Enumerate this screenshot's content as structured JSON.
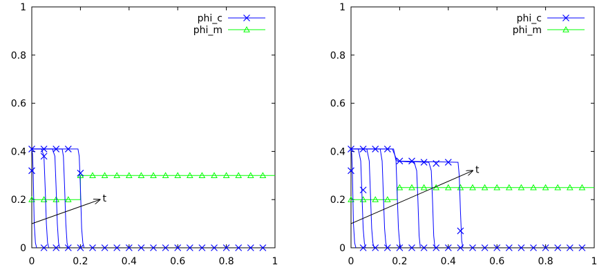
{
  "chart_data": [
    {
      "type": "line",
      "xlim": [
        0,
        1
      ],
      "ylim": [
        0,
        1
      ],
      "xticks": [
        "0",
        "0.2",
        "0.4",
        "0.6",
        "0.8",
        "1"
      ],
      "yticks": [
        "0",
        "0.2",
        "0.4",
        "0.6",
        "0.8",
        "1"
      ],
      "grid": false,
      "legend_position": "top-right",
      "legend": [
        {
          "label": "phi_c",
          "color": "#0000ff",
          "marker": "x"
        },
        {
          "label": "phi_m",
          "color": "#00ff00",
          "marker": "triangle"
        }
      ],
      "annotation": {
        "label": "t",
        "from": [
          0.0,
          0.1
        ],
        "to": [
          0.28,
          0.2
        ]
      },
      "phi_c_curves": [
        [
          [
            0,
            0.41
          ],
          [
            0.003,
            0.39
          ],
          [
            0.006,
            0.3
          ],
          [
            0.01,
            0.1
          ],
          [
            0.015,
            0.02
          ],
          [
            0.02,
            0
          ]
        ],
        [
          [
            0,
            0.41
          ],
          [
            0.04,
            0.41
          ],
          [
            0.05,
            0.38
          ],
          [
            0.055,
            0.25
          ],
          [
            0.06,
            0.1
          ],
          [
            0.065,
            0.02
          ],
          [
            0.07,
            0
          ]
        ],
        [
          [
            0,
            0.41
          ],
          [
            0.085,
            0.41
          ],
          [
            0.095,
            0.38
          ],
          [
            0.1,
            0.25
          ],
          [
            0.105,
            0.1
          ],
          [
            0.11,
            0.02
          ],
          [
            0.115,
            0
          ]
        ],
        [
          [
            0,
            0.41
          ],
          [
            0.125,
            0.41
          ],
          [
            0.13,
            0.38
          ],
          [
            0.135,
            0.25
          ],
          [
            0.14,
            0.1
          ],
          [
            0.145,
            0.02
          ],
          [
            0.15,
            0
          ]
        ],
        [
          [
            0,
            0.41
          ],
          [
            0.19,
            0.41
          ],
          [
            0.195,
            0.38
          ],
          [
            0.2,
            0.25
          ],
          [
            0.205,
            0.08
          ],
          [
            0.21,
            0.02
          ],
          [
            0.215,
            0
          ]
        ]
      ],
      "phi_c_markers": [
        [
          0,
          0.32
        ],
        [
          0,
          0.41
        ],
        [
          0.05,
          0.41
        ],
        [
          0.1,
          0.41
        ],
        [
          0.15,
          0.41
        ],
        [
          0.05,
          0.38
        ],
        [
          0.2,
          0.31
        ],
        [
          0.05,
          0
        ],
        [
          0.1,
          0
        ],
        [
          0.15,
          0
        ],
        [
          0.2,
          0
        ],
        [
          0.25,
          0
        ],
        [
          0.3,
          0
        ],
        [
          0.35,
          0
        ],
        [
          0.4,
          0
        ],
        [
          0.45,
          0
        ],
        [
          0.5,
          0
        ],
        [
          0.55,
          0
        ],
        [
          0.6,
          0
        ],
        [
          0.65,
          0
        ],
        [
          0.7,
          0
        ],
        [
          0.75,
          0
        ],
        [
          0.8,
          0
        ],
        [
          0.85,
          0
        ],
        [
          0.9,
          0
        ],
        [
          0.95,
          0
        ]
      ],
      "phi_m_curve": [
        [
          0,
          0.2
        ],
        [
          0.2,
          0.2
        ],
        [
          0.2,
          0.3
        ],
        [
          1,
          0.3
        ]
      ],
      "phi_m_markers": [
        [
          0,
          0.2
        ],
        [
          0.05,
          0.2
        ],
        [
          0.1,
          0.2
        ],
        [
          0.15,
          0.2
        ],
        [
          0.2,
          0.3
        ],
        [
          0.25,
          0.3
        ],
        [
          0.3,
          0.3
        ],
        [
          0.35,
          0.3
        ],
        [
          0.4,
          0.3
        ],
        [
          0.45,
          0.3
        ],
        [
          0.5,
          0.3
        ],
        [
          0.55,
          0.3
        ],
        [
          0.6,
          0.3
        ],
        [
          0.65,
          0.3
        ],
        [
          0.7,
          0.3
        ],
        [
          0.75,
          0.3
        ],
        [
          0.8,
          0.3
        ],
        [
          0.85,
          0.3
        ],
        [
          0.9,
          0.3
        ],
        [
          0.95,
          0.3
        ]
      ]
    },
    {
      "type": "line",
      "xlim": [
        0,
        1
      ],
      "ylim": [
        0,
        1
      ],
      "xticks": [
        "0",
        "0.2",
        "0.4",
        "0.6",
        "0.8",
        "1"
      ],
      "yticks": [
        "0",
        "0.2",
        "0.4",
        "0.6",
        "0.8",
        "1"
      ],
      "grid": false,
      "legend_position": "top-right",
      "legend": [
        {
          "label": "phi_c",
          "color": "#0000ff",
          "marker": "x"
        },
        {
          "label": "phi_m",
          "color": "#00ff00",
          "marker": "triangle"
        }
      ],
      "annotation": {
        "label": "t",
        "from": [
          0.0,
          0.1
        ],
        "to": [
          0.5,
          0.32
        ]
      },
      "phi_c_curves": [
        [
          [
            0,
            0.41
          ],
          [
            0.003,
            0.39
          ],
          [
            0.006,
            0.3
          ],
          [
            0.01,
            0.1
          ],
          [
            0.015,
            0.02
          ],
          [
            0.02,
            0
          ]
        ],
        [
          [
            0,
            0.41
          ],
          [
            0.03,
            0.41
          ],
          [
            0.04,
            0.36
          ],
          [
            0.045,
            0.22
          ],
          [
            0.05,
            0.08
          ],
          [
            0.055,
            0.02
          ],
          [
            0.06,
            0
          ]
        ],
        [
          [
            0,
            0.41
          ],
          [
            0.065,
            0.41
          ],
          [
            0.075,
            0.36
          ],
          [
            0.08,
            0.22
          ],
          [
            0.085,
            0.08
          ],
          [
            0.09,
            0.02
          ],
          [
            0.095,
            0
          ]
        ],
        [
          [
            0,
            0.41
          ],
          [
            0.12,
            0.41
          ],
          [
            0.128,
            0.36
          ],
          [
            0.133,
            0.22
          ],
          [
            0.138,
            0.08
          ],
          [
            0.143,
            0.02
          ],
          [
            0.148,
            0
          ]
        ],
        [
          [
            0,
            0.41
          ],
          [
            0.175,
            0.41
          ],
          [
            0.185,
            0.36
          ],
          [
            0.19,
            0.22
          ],
          [
            0.195,
            0.08
          ],
          [
            0.2,
            0.02
          ],
          [
            0.205,
            0
          ]
        ],
        [
          [
            0,
            0.41
          ],
          [
            0.17,
            0.41
          ],
          [
            0.19,
            0.36
          ],
          [
            0.26,
            0.355
          ],
          [
            0.27,
            0.32
          ],
          [
            0.275,
            0.2
          ],
          [
            0.28,
            0.05
          ],
          [
            0.285,
            0
          ]
        ],
        [
          [
            0.19,
            0.36
          ],
          [
            0.32,
            0.355
          ],
          [
            0.33,
            0.32
          ],
          [
            0.335,
            0.2
          ],
          [
            0.34,
            0.05
          ],
          [
            0.345,
            0
          ]
        ],
        [
          [
            0.19,
            0.36
          ],
          [
            0.44,
            0.355
          ],
          [
            0.445,
            0.3
          ],
          [
            0.45,
            0.15
          ],
          [
            0.455,
            0.03
          ],
          [
            0.46,
            0
          ]
        ]
      ],
      "phi_c_markers": [
        [
          0,
          0.32
        ],
        [
          0,
          0.41
        ],
        [
          0.05,
          0.41
        ],
        [
          0.1,
          0.41
        ],
        [
          0.15,
          0.41
        ],
        [
          0.2,
          0.36
        ],
        [
          0.25,
          0.36
        ],
        [
          0.3,
          0.355
        ],
        [
          0.35,
          0.35
        ],
        [
          0.4,
          0.355
        ],
        [
          0.05,
          0.24
        ],
        [
          0.45,
          0.07
        ],
        [
          0.05,
          0
        ],
        [
          0.1,
          0
        ],
        [
          0.15,
          0
        ],
        [
          0.2,
          0
        ],
        [
          0.25,
          0
        ],
        [
          0.3,
          0
        ],
        [
          0.35,
          0
        ],
        [
          0.4,
          0
        ],
        [
          0.45,
          0
        ],
        [
          0.5,
          0
        ],
        [
          0.55,
          0
        ],
        [
          0.6,
          0
        ],
        [
          0.65,
          0
        ],
        [
          0.7,
          0
        ],
        [
          0.75,
          0
        ],
        [
          0.8,
          0
        ],
        [
          0.85,
          0
        ],
        [
          0.9,
          0
        ],
        [
          0.95,
          0
        ]
      ],
      "phi_m_curve": [
        [
          0,
          0.2
        ],
        [
          0.19,
          0.2
        ],
        [
          0.19,
          0.25
        ],
        [
          1,
          0.25
        ]
      ],
      "phi_m_markers": [
        [
          0,
          0.2
        ],
        [
          0.05,
          0.2
        ],
        [
          0.1,
          0.2
        ],
        [
          0.15,
          0.2
        ],
        [
          0.2,
          0.25
        ],
        [
          0.25,
          0.25
        ],
        [
          0.3,
          0.25
        ],
        [
          0.35,
          0.25
        ],
        [
          0.4,
          0.25
        ],
        [
          0.45,
          0.25
        ],
        [
          0.5,
          0.25
        ],
        [
          0.55,
          0.25
        ],
        [
          0.6,
          0.25
        ],
        [
          0.65,
          0.25
        ],
        [
          0.7,
          0.25
        ],
        [
          0.75,
          0.25
        ],
        [
          0.8,
          0.25
        ],
        [
          0.85,
          0.25
        ],
        [
          0.9,
          0.25
        ],
        [
          0.95,
          0.25
        ]
      ]
    }
  ]
}
